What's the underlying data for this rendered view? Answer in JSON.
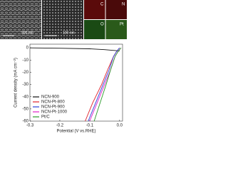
{
  "images": {
    "sem_scale_1": "300 nm",
    "sem_scale_2": "100 nm",
    "maps": [
      "C",
      "N",
      "O",
      "Pt"
    ]
  },
  "chart_data": {
    "type": "line",
    "xlabel": "Potential (V vs.RHE)",
    "ylabel": "Current density (mA cm⁻²)",
    "xlim": [
      -0.3,
      0.01
    ],
    "xticks": [
      -0.3,
      -0.2,
      -0.1,
      {
        "value": 0,
        "label": "0.0"
      }
    ],
    "ylim": [
      -60,
      3
    ],
    "yticks": [
      0,
      -10,
      -20,
      -30,
      -40,
      -50,
      -60
    ],
    "legend": "lower-left",
    "series": [
      {
        "name": "NCN-900",
        "color": "#111111",
        "x": [
          -0.3,
          -0.2,
          -0.1,
          -0.05,
          0
        ],
        "values": [
          0,
          -0.3,
          -0.8,
          -1.5,
          -2.5
        ]
      },
      {
        "name": "NCN-Pt-800",
        "color": "#e0202a",
        "x": [
          -0.115,
          -0.09,
          -0.06,
          -0.04,
          -0.02,
          -0.01,
          0
        ],
        "values": [
          -60,
          -45,
          -30,
          -18,
          -7,
          -3,
          0
        ]
      },
      {
        "name": "NCN-Pt-900",
        "color": "#2a3fd8",
        "x": [
          -0.105,
          -0.08,
          -0.055,
          -0.035,
          -0.02,
          -0.01,
          0
        ],
        "values": [
          -60,
          -45,
          -30,
          -18,
          -7,
          -3,
          0
        ]
      },
      {
        "name": "NCN-Pt-1000",
        "color": "#e020c8",
        "x": [
          -0.1,
          -0.075,
          -0.05,
          -0.03,
          -0.015,
          -0.005,
          0.005
        ],
        "values": [
          -60,
          -45,
          -30,
          -18,
          -7,
          -3,
          0
        ]
      },
      {
        "name": "Pt/C",
        "color": "#2a9a2a",
        "x": [
          -0.085,
          -0.065,
          -0.045,
          -0.03,
          -0.015,
          -0.005,
          0.005
        ],
        "values": [
          -60,
          -45,
          -30,
          -18,
          -7,
          -3,
          0
        ]
      }
    ]
  }
}
